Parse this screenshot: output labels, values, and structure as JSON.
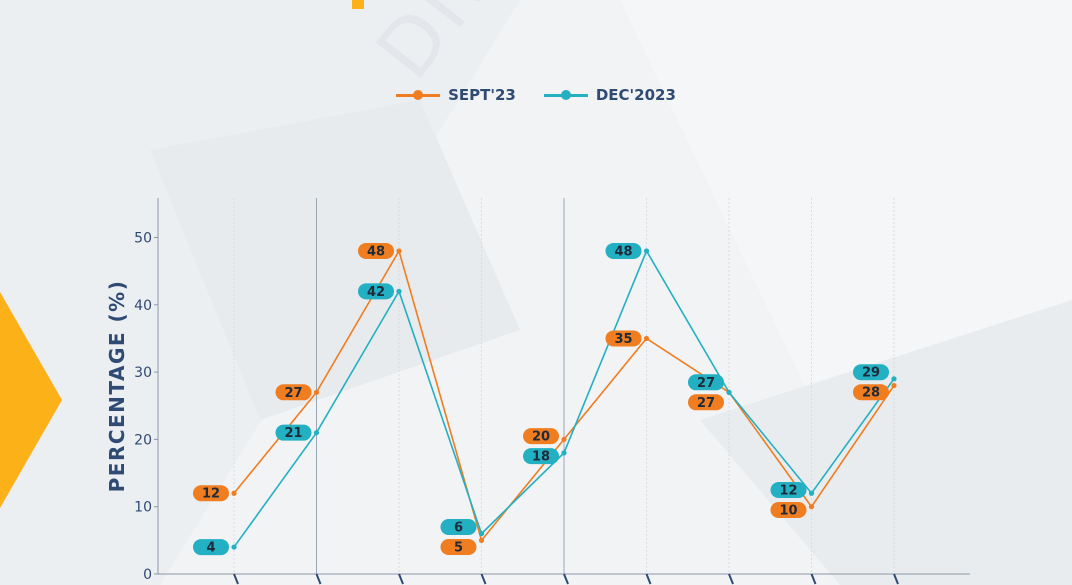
{
  "watermark_text": "DNJ Rep",
  "colors": {
    "sept": "#f07d1f",
    "dec": "#23b0c2",
    "accent": "#fbb117",
    "axis_text": "#2f4a73"
  },
  "chart_data": {
    "type": "line",
    "title": "",
    "xlabel": "",
    "ylabel": "PERCENTAGE (%)",
    "ylim": [
      0,
      55
    ],
    "yticks": [
      0,
      10,
      20,
      30,
      40,
      50
    ],
    "grid": true,
    "legend_position": "top-center",
    "categories": [
      "",
      "",
      "",
      "",
      "",
      "",
      "",
      "",
      ""
    ],
    "series": [
      {
        "name": "SEPT'23",
        "color": "#f07d1f",
        "values": [
          12,
          27,
          48,
          5,
          20,
          35,
          27,
          10,
          28
        ]
      },
      {
        "name": "DEC'2023",
        "color": "#23b0c2",
        "values": [
          4,
          21,
          42,
          6,
          18,
          48,
          27,
          12,
          29
        ]
      }
    ]
  }
}
